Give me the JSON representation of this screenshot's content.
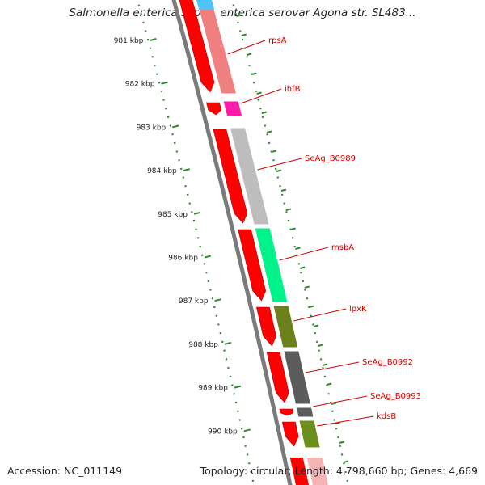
{
  "title": "Salmonella enterica subsp. enterica serovar Agona str. SL483...",
  "accession_text": "Accession: NC_011149",
  "stats_text": "Topology: circular; Length: 4,798,660 bp; Genes: 4,669",
  "scale": {
    "unit": "kbp",
    "ticks": [
      "981 kbp",
      "982 kbp",
      "983 kbp",
      "984 kbp",
      "985 kbp",
      "986 kbp",
      "987 kbp",
      "988 kbp",
      "989 kbp",
      "990 kbp"
    ]
  },
  "genes": [
    {
      "label": "rpsA",
      "color": "#f08080"
    },
    {
      "label": "ihfB",
      "color": "#ff1aa8"
    },
    {
      "label": "SeAg_B0989",
      "color": "#bdbdbd"
    },
    {
      "label": "msbA",
      "color": "#00f28a"
    },
    {
      "label": "lpxK",
      "color": "#6b7f1a"
    },
    {
      "label": "SeAg_B0992",
      "color": "#5c5c5c"
    },
    {
      "label": "SeAg_B0993",
      "color": "#5c5c5c"
    },
    {
      "label": "kdsB",
      "color": "#6b8f1a"
    }
  ],
  "colors": {
    "cds_strand": "#ff0000",
    "scale_dots": "#2e8b2e",
    "backbone": "#7a7a7a",
    "gene_label": "#d00000",
    "above_view_gene": "#4fc3f7"
  }
}
